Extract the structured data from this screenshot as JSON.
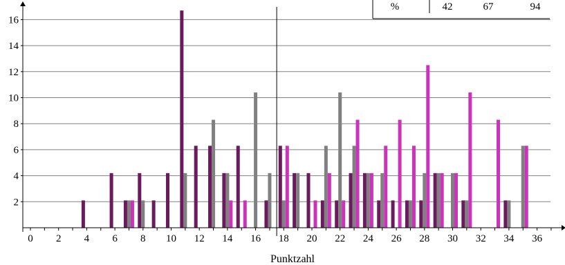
{
  "chart_data": {
    "type": "bar",
    "title": "",
    "xlabel": "Punktzahl",
    "ylabel": "",
    "ylim": [
      0,
      17
    ],
    "y_ticks": [
      2,
      4,
      6,
      8,
      10,
      12,
      14,
      16
    ],
    "x_ticks": [
      0,
      2,
      4,
      6,
      8,
      10,
      12,
      14,
      16,
      18,
      20,
      22,
      24,
      26,
      28,
      30,
      32,
      34,
      36
    ],
    "x": [
      0,
      1,
      2,
      3,
      4,
      5,
      6,
      7,
      8,
      9,
      10,
      11,
      12,
      13,
      14,
      15,
      16,
      17,
      18,
      19,
      20,
      21,
      22,
      23,
      24,
      25,
      26,
      27,
      28,
      29,
      30,
      31,
      32,
      33,
      34,
      35,
      36
    ],
    "grid": true,
    "vertical_marker_x": 17.5,
    "series": [
      {
        "color": "#6b1a5e",
        "values": [
          0,
          0,
          0,
          0,
          2.1,
          0,
          4.2,
          2.1,
          4.2,
          2.1,
          4.2,
          16.7,
          6.3,
          6.3,
          4.2,
          6.3,
          0,
          2.1,
          6.3,
          4.2,
          4.2,
          2.1,
          2.1,
          4.2,
          4.2,
          2.1,
          2.1,
          2.1,
          2.1,
          4.2,
          0,
          2.1,
          0,
          0,
          2.1,
          0,
          0
        ]
      },
      {
        "color": "#808080",
        "values": [
          0,
          0,
          0,
          0,
          0,
          0,
          0,
          2.1,
          2.1,
          0,
          0,
          4.2,
          0,
          8.3,
          4.2,
          0,
          10.4,
          4.2,
          2.1,
          4.2,
          0,
          6.3,
          10.4,
          6.3,
          4.2,
          4.2,
          0,
          2.1,
          4.2,
          4.2,
          4.2,
          2.1,
          0,
          0,
          2.1,
          6.3,
          0
        ]
      },
      {
        "color": "#cc33bb",
        "values": [
          0,
          0,
          0,
          0,
          0,
          0,
          0,
          2.1,
          0,
          0,
          0,
          0,
          0,
          0,
          2.1,
          2.1,
          0,
          0,
          6.3,
          0,
          2.1,
          4.2,
          2.1,
          8.3,
          4.2,
          6.3,
          8.3,
          6.3,
          12.5,
          4.2,
          4.2,
          10.4,
          0,
          8.3,
          0,
          6.3,
          0
        ]
      }
    ]
  },
  "table": {
    "row_label": "%",
    "values": [
      "42",
      "67",
      "94"
    ]
  },
  "colors": {
    "axis": "#000000",
    "grid": "#808080"
  }
}
